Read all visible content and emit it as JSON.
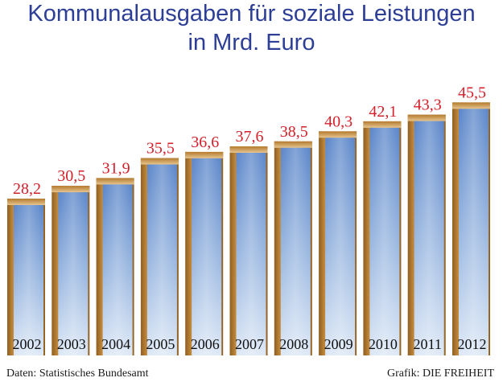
{
  "title_line_1": "Kommunalausgaben für soziale Leistungen",
  "title_line_2": "in Mrd. Euro",
  "source": "Daten: Statistisches Bundesamt",
  "credit": "Grafik: DIE FREIHEIT",
  "colors": {
    "title": "#2d3e96",
    "value_label": "#d4202b",
    "bar_gold": "#c98f3e",
    "bar_blue_top": "#5b86c9",
    "bar_blue_light": "#dde8f6",
    "year_label": "#111111"
  },
  "chart_data": {
    "type": "bar",
    "title": "Kommunalausgaben für soziale Leistungen in Mrd. Euro",
    "xlabel": "",
    "ylabel": "",
    "categories": [
      "2002",
      "2003",
      "2004",
      "2005",
      "2006",
      "2007",
      "2008",
      "2009",
      "2010",
      "2011",
      "2012"
    ],
    "values": [
      28.2,
      30.5,
      31.9,
      35.5,
      36.6,
      37.6,
      38.5,
      40.3,
      42.1,
      43.3,
      45.5
    ],
    "value_labels": [
      "28,2",
      "30,5",
      "31,9",
      "35,5",
      "36,6",
      "37,6",
      "38,5",
      "40,3",
      "42,1",
      "43,3",
      "45,5"
    ],
    "grid": false,
    "legend": "none"
  }
}
